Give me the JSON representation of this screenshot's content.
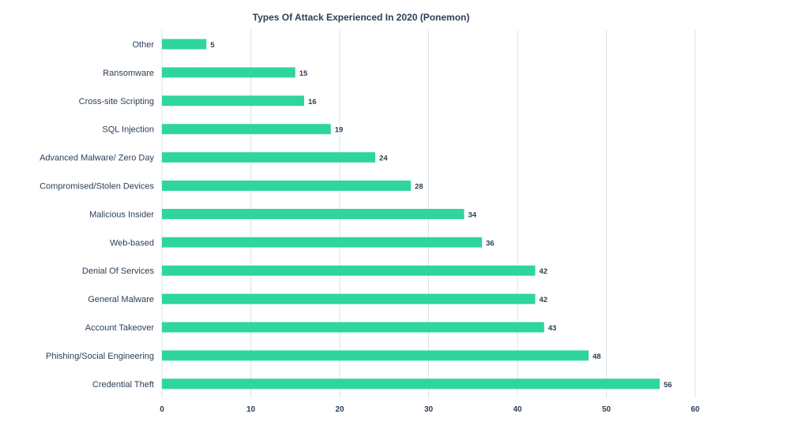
{
  "chart_data": {
    "type": "bar",
    "orientation": "horizontal",
    "title": "Types Of Attack Experienced In 2020 (Ponemon)",
    "xlabel": "",
    "ylabel": "",
    "categories": [
      "Other",
      "Ransomware",
      "Cross-site Scripting",
      "SQL Injection",
      "Advanced Malware/ Zero Day",
      "Compromised/Stolen Devices",
      "Malicious Insider",
      "Web-based",
      "Denial Of Services",
      "General Malware",
      "Account Takeover",
      "Phishing/Social Engineering",
      "Credential Theft"
    ],
    "values": [
      5,
      15,
      16,
      19,
      24,
      28,
      34,
      36,
      42,
      42,
      43,
      48,
      56
    ],
    "xlim": [
      0,
      60
    ],
    "xticks": [
      0,
      10,
      20,
      30,
      40,
      50,
      60
    ],
    "grid": "vertical",
    "legend": "none",
    "bar_color": "#2ed69e",
    "grid_color": "#d6e4f0",
    "text_color": "#2b3f57"
  }
}
